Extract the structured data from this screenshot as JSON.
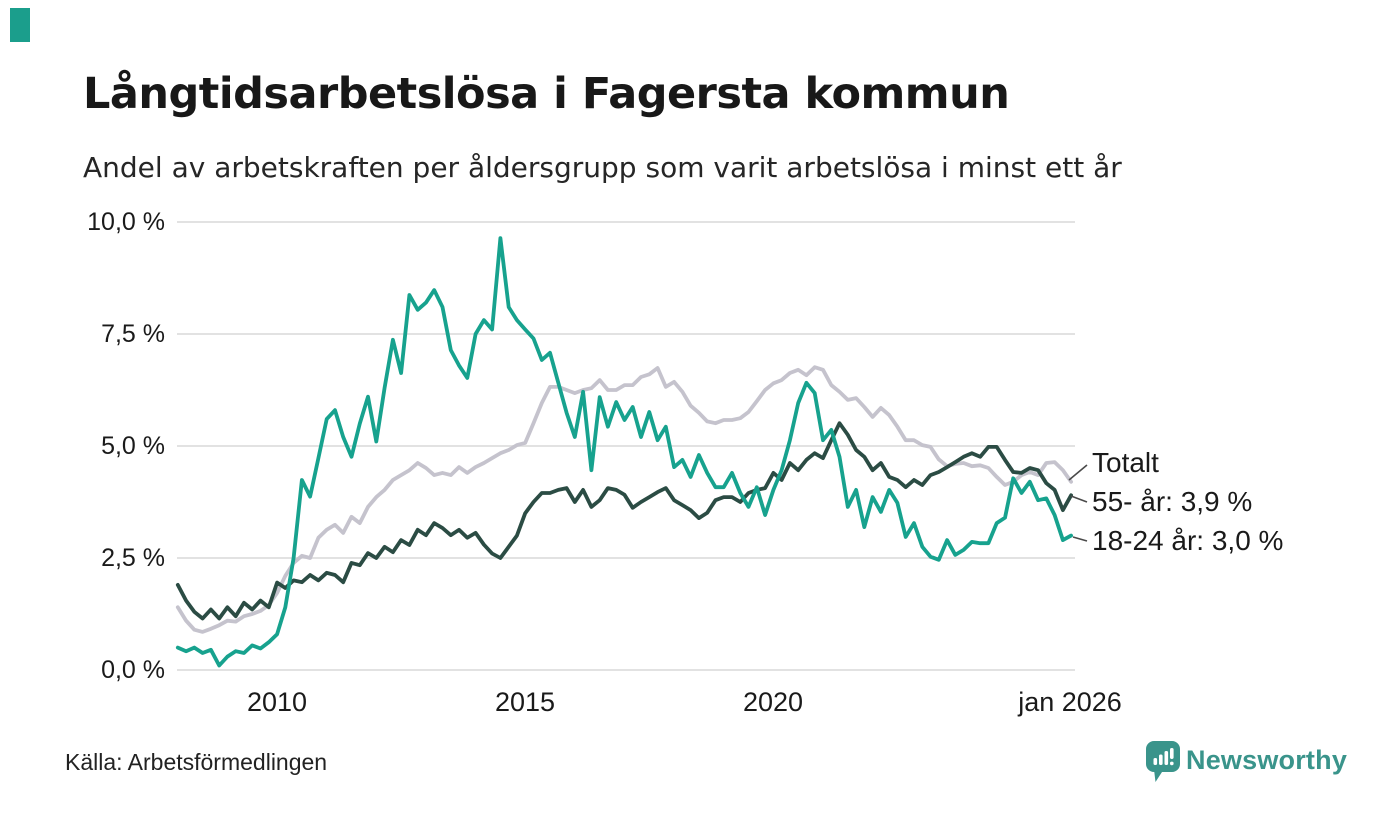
{
  "brand": {
    "accent_color": "#1b9e8c",
    "logo_text": "Newsworthy",
    "logo_color": "#3a948b",
    "logo_icon": "chart-speech-bubble-icon"
  },
  "header": {
    "title": "Långtidsarbetslösa i Fagersta kommun",
    "subtitle": "Andel av arbetskraften per åldersgrupp som varit arbetslösa i minst ett år"
  },
  "source": {
    "label": "Källa: Arbetsförmedlingen"
  },
  "chart_data": {
    "type": "line",
    "title": "Långtidsarbetslösa i Fagersta kommun",
    "subtitle": "Andel av arbetskraften per åldersgrupp som varit arbetslösa i minst ett år",
    "grid": true,
    "legend_position": "right-end-labels",
    "x_axis": {
      "label": "",
      "ticks": [
        "2010",
        "2015",
        "2020",
        "jan 2026"
      ],
      "tick_years": [
        2010,
        2015,
        2020,
        2026
      ],
      "range": [
        2008,
        2026
      ]
    },
    "y_axis": {
      "label": "",
      "unit": "%",
      "ticks": [
        "10,0 %",
        "7,5 %",
        "5,0 %",
        "2,5 %",
        "0,0 %"
      ],
      "tick_values": [
        10,
        7.5,
        5,
        2.5,
        0
      ],
      "range": [
        0,
        10
      ]
    },
    "x_start": 2008,
    "x_step_years": 0.166667,
    "series": [
      {
        "name": "Totalt",
        "end_label": "Totalt",
        "end_value": 4.2,
        "color": "#c5c3cd",
        "values": [
          1.4,
          1.1,
          0.9,
          0.85,
          0.92,
          1.0,
          1.1,
          1.08,
          1.2,
          1.25,
          1.32,
          1.45,
          1.72,
          2.1,
          2.39,
          2.55,
          2.5,
          2.95,
          3.13,
          3.24,
          3.06,
          3.42,
          3.28,
          3.64,
          3.86,
          4.02,
          4.24,
          4.35,
          4.46,
          4.62,
          4.51,
          4.35,
          4.4,
          4.35,
          4.53,
          4.4,
          4.53,
          4.62,
          4.73,
          4.84,
          4.91,
          5.02,
          5.07,
          5.51,
          5.96,
          6.32,
          6.32,
          6.25,
          6.18,
          6.25,
          6.29,
          6.47,
          6.25,
          6.25,
          6.36,
          6.36,
          6.54,
          6.6,
          6.74,
          6.32,
          6.43,
          6.21,
          5.9,
          5.74,
          5.55,
          5.51,
          5.58,
          5.58,
          5.62,
          5.76,
          6.0,
          6.25,
          6.4,
          6.47,
          6.63,
          6.7,
          6.58,
          6.76,
          6.7,
          6.36,
          6.21,
          6.03,
          6.07,
          5.87,
          5.65,
          5.85,
          5.69,
          5.43,
          5.13,
          5.13,
          5.02,
          4.98,
          4.7,
          4.55,
          4.6,
          4.62,
          4.55,
          4.57,
          4.51,
          4.31,
          4.13,
          4.2,
          4.35,
          4.42,
          4.35,
          4.62,
          4.64,
          4.46,
          4.2
        ]
      },
      {
        "name": "55- år",
        "end_label": "55- år: 3,9 %",
        "end_value": 3.9,
        "color": "#2b4c44",
        "values": [
          1.9,
          1.55,
          1.3,
          1.15,
          1.35,
          1.15,
          1.4,
          1.2,
          1.5,
          1.35,
          1.55,
          1.4,
          1.95,
          1.83,
          2.0,
          1.96,
          2.12,
          2.0,
          2.17,
          2.12,
          1.96,
          2.39,
          2.34,
          2.61,
          2.5,
          2.75,
          2.63,
          2.9,
          2.79,
          3.13,
          3.01,
          3.28,
          3.17,
          3.01,
          3.13,
          2.95,
          3.06,
          2.8,
          2.6,
          2.5,
          2.75,
          3.0,
          3.5,
          3.75,
          3.95,
          3.95,
          4.02,
          4.06,
          3.75,
          4.02,
          3.64,
          3.79,
          4.06,
          4.02,
          3.91,
          3.62,
          3.75,
          3.86,
          3.97,
          4.06,
          3.79,
          3.68,
          3.57,
          3.39,
          3.51,
          3.79,
          3.86,
          3.86,
          3.75,
          3.95,
          4.02,
          4.06,
          4.4,
          4.24,
          4.62,
          4.46,
          4.69,
          4.84,
          4.73,
          5.13,
          5.51,
          5.25,
          4.91,
          4.76,
          4.46,
          4.62,
          4.31,
          4.24,
          4.08,
          4.24,
          4.13,
          4.35,
          4.42,
          4.53,
          4.64,
          4.76,
          4.84,
          4.76,
          4.98,
          4.98,
          4.69,
          4.42,
          4.4,
          4.51,
          4.46,
          4.17,
          4.02,
          3.57,
          3.9
        ]
      },
      {
        "name": "18-24 år",
        "end_label": "18-24 år: 3,0 %",
        "end_value": 3.0,
        "color": "#17a28e",
        "values": [
          0.5,
          0.42,
          0.5,
          0.38,
          0.45,
          0.1,
          0.3,
          0.42,
          0.38,
          0.55,
          0.48,
          0.62,
          0.8,
          1.4,
          2.5,
          4.24,
          3.87,
          4.73,
          5.6,
          5.8,
          5.2,
          4.76,
          5.5,
          6.1,
          5.1,
          6.3,
          7.37,
          6.63,
          8.37,
          8.04,
          8.2,
          8.48,
          8.1,
          7.14,
          6.8,
          6.52,
          7.5,
          7.81,
          7.6,
          9.64,
          8.1,
          7.81,
          7.6,
          7.4,
          6.92,
          7.08,
          6.41,
          5.74,
          5.2,
          6.21,
          4.46,
          6.09,
          5.43,
          5.98,
          5.58,
          5.87,
          5.2,
          5.76,
          5.13,
          5.43,
          4.53,
          4.69,
          4.31,
          4.8,
          4.4,
          4.08,
          4.08,
          4.4,
          3.95,
          3.64,
          4.08,
          3.46,
          4.02,
          4.46,
          5.13,
          5.96,
          6.41,
          6.18,
          5.13,
          5.36,
          4.76,
          3.64,
          4.02,
          3.19,
          3.86,
          3.53,
          4.02,
          3.73,
          2.97,
          3.28,
          2.75,
          2.53,
          2.46,
          2.9,
          2.57,
          2.68,
          2.86,
          2.83,
          2.83,
          3.28,
          3.4,
          4.28,
          3.95,
          4.2,
          3.79,
          3.83,
          3.46,
          2.9,
          3.0
        ]
      }
    ]
  }
}
